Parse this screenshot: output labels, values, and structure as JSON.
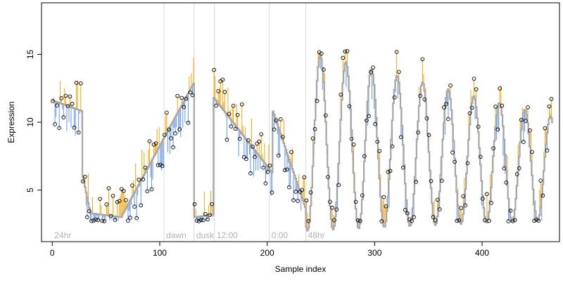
{
  "chart_data": {
    "type": "scatter",
    "title": "",
    "xlabel": "Sample index",
    "ylabel": "Expression",
    "xlim": [
      -10,
      472
    ],
    "ylim": [
      1.2,
      18.8
    ],
    "x_ticks": [
      0,
      100,
      200,
      300,
      400
    ],
    "y_ticks": [
      5,
      10,
      15
    ],
    "grid": false,
    "legend": "none",
    "colors": {
      "model_line": "#a6a6a6",
      "residual_positive": "#ffa500",
      "residual_negative": "#6495ed",
      "observed_point_stroke": "#000000",
      "annotation_line": "#d9d9d9",
      "annotation_text": "#b3b3b3"
    },
    "annotations": [
      {
        "label": "24hr",
        "x": 0
      },
      {
        "label": "dawn",
        "x": 104
      },
      {
        "label": "dusk",
        "x": 132
      },
      {
        "label": "12:00",
        "x": 151
      },
      {
        "label": "0:00",
        "x": 202
      },
      {
        "label": "48hr",
        "x": 236
      }
    ],
    "series": [
      {
        "name": "",
        "style": "model_step_line",
        "segments": [
          {
            "x0": 0,
            "x1": 28,
            "y0": 11.6,
            "y1": 10.8
          },
          {
            "x0": 28,
            "x1": 35,
            "y0": 6.0,
            "y1": 3.3
          },
          {
            "x0": 35,
            "x1": 65,
            "y0": 3.3,
            "y1": 3.0
          },
          {
            "x0": 65,
            "x1": 132,
            "y0": 3.2,
            "y1": 13.0
          },
          {
            "x0": 132,
            "x1": 150,
            "y0": 3.0,
            "y1": 3.2
          },
          {
            "x0": 150,
            "x1": 205,
            "y0": 11.8,
            "y1": 6.2
          },
          {
            "x0": 205,
            "x1": 236,
            "y0": 10.8,
            "y1": 3.5
          }
        ],
        "oscillation": {
          "x0": 236,
          "x1": 465,
          "period": 23.8,
          "amp_start": 6.6,
          "amp_end": 3.8,
          "center_start": 8.6,
          "center_end": 6.6,
          "peak_x": 249
        }
      },
      {
        "name": "",
        "style": "observed_points",
        "noise_amplitude": 2.2,
        "floor": 2.7,
        "ceiling": 15.3,
        "x_range": [
          0,
          465
        ]
      }
    ]
  }
}
